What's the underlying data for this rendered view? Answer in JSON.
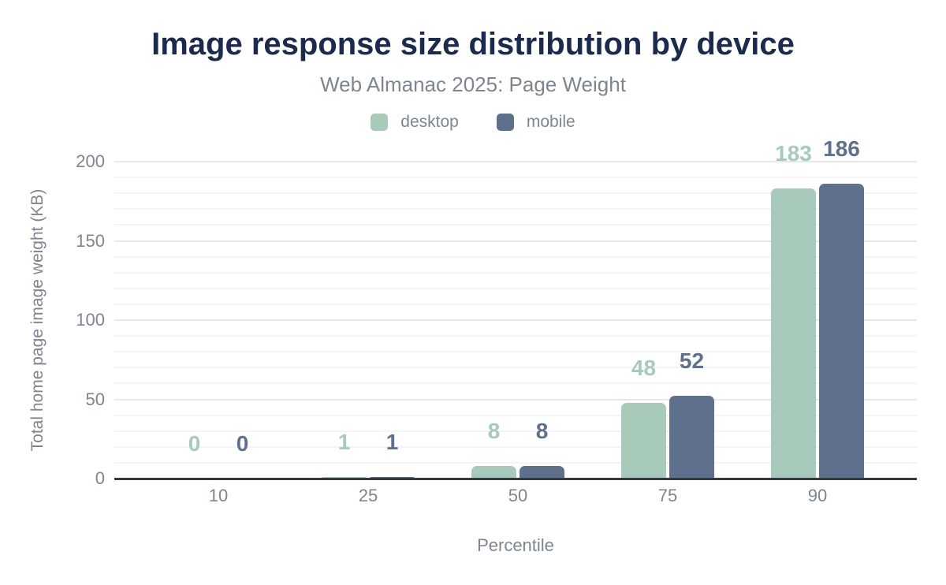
{
  "chart_data": {
    "type": "bar",
    "title": "Image response size distribution by device",
    "subtitle": "Web Almanac 2025: Page Weight",
    "xlabel": "Percentile",
    "ylabel": "Total home page image weight (KB)",
    "categories": [
      "10",
      "25",
      "50",
      "75",
      "90"
    ],
    "series": [
      {
        "name": "desktop",
        "color": "#a8caba",
        "values": [
          0,
          1,
          8,
          48,
          183
        ]
      },
      {
        "name": "mobile",
        "color": "#5f708c",
        "values": [
          0,
          1,
          8,
          52,
          186
        ]
      }
    ],
    "data_labels": {
      "desktop": [
        "0",
        "1",
        "8",
        "48",
        "183"
      ],
      "mobile": [
        "0",
        "1",
        "8",
        "52",
        "186"
      ]
    },
    "ylim": [
      0,
      200
    ],
    "y_ticks": [
      0,
      50,
      100,
      150,
      200
    ],
    "grid": {
      "orientation": "horizontal",
      "minor_step": 10,
      "major_step": 50
    },
    "legend_position": "top",
    "colors": {
      "desktop": "#a8caba",
      "mobile": "#5f708c",
      "title": "#1c2b4d",
      "text": "#7d8591",
      "axis_line": "#343a44",
      "grid_major": "#e8e8ea",
      "grid_minor": "#f4f4f6",
      "background": "#ffffff"
    }
  }
}
